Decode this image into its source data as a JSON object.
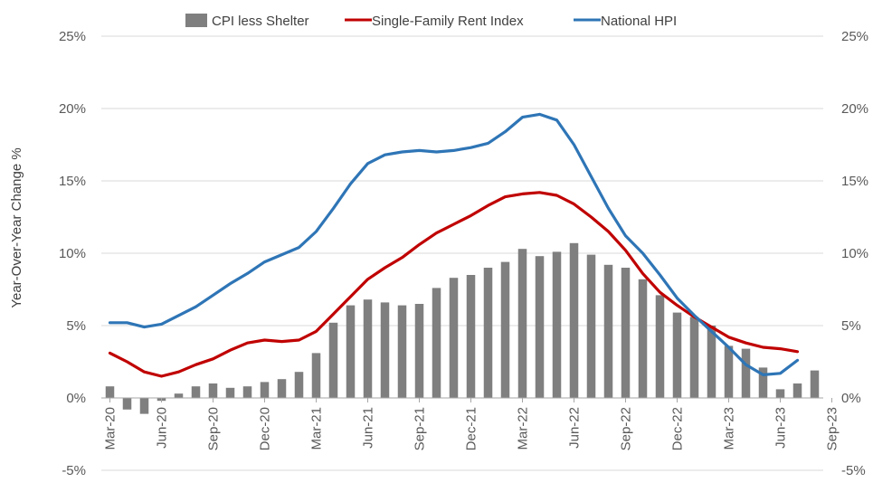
{
  "chart_data": {
    "type": "bar+line",
    "title": "",
    "ylabel": "Year-Over-Year Change %",
    "ylim": [
      -5,
      25
    ],
    "yticks": [
      "-5%",
      "0%",
      "5%",
      "10%",
      "15%",
      "20%",
      "25%"
    ],
    "ytick_values": [
      -5,
      0,
      5,
      10,
      15,
      20,
      25
    ],
    "x_tick_labels": [
      "Mar-20",
      "Jun-20",
      "Sep-20",
      "Dec-20",
      "Mar-21",
      "Jun-21",
      "Sep-21",
      "Dec-21",
      "Mar-22",
      "Jun-22",
      "Sep-22",
      "Dec-22",
      "Mar-23",
      "Jun-23",
      "Sep-23"
    ],
    "grid": "horizontal",
    "legend": "top-center",
    "colors": {
      "cpi": "#7f7f7f",
      "rent": "#c00000",
      "hpi": "#2e75b6",
      "grid": "#d9d9d9",
      "axis": "#a6a6a6"
    },
    "series": [
      {
        "name": "CPI less Shelter",
        "kind": "bar",
        "values": [
          0.8,
          -0.8,
          -1.1,
          -0.2,
          0.3,
          0.8,
          1.0,
          0.7,
          0.8,
          1.1,
          1.3,
          1.8,
          3.1,
          5.2,
          6.4,
          6.8,
          6.6,
          6.4,
          6.5,
          7.6,
          8.3,
          8.5,
          9.0,
          9.4,
          10.3,
          9.8,
          10.1,
          10.7,
          9.9,
          9.2,
          9.0,
          8.2,
          7.1,
          5.9,
          5.6,
          5.0,
          3.6,
          3.4,
          2.1,
          0.6,
          1.0,
          1.9
        ]
      },
      {
        "name": "Single-Family Rent Index",
        "kind": "line",
        "values": [
          3.1,
          2.5,
          1.8,
          1.5,
          1.8,
          2.3,
          2.7,
          3.3,
          3.8,
          4.0,
          3.9,
          4.0,
          4.6,
          5.8,
          7.0,
          8.2,
          9.0,
          9.7,
          10.6,
          11.4,
          12.0,
          12.6,
          13.3,
          13.9,
          14.1,
          14.2,
          14.0,
          13.4,
          12.5,
          11.5,
          10.2,
          8.6,
          7.3,
          6.4,
          5.6,
          4.9,
          4.2,
          3.8,
          3.5,
          3.4,
          3.2,
          null
        ]
      },
      {
        "name": "National HPI",
        "kind": "line",
        "values": [
          5.2,
          5.2,
          4.9,
          5.1,
          5.7,
          6.3,
          7.1,
          7.9,
          8.6,
          9.4,
          9.9,
          10.4,
          11.5,
          13.1,
          14.8,
          16.2,
          16.8,
          17.0,
          17.1,
          17.0,
          17.1,
          17.3,
          17.6,
          18.4,
          19.4,
          19.6,
          19.2,
          17.5,
          15.3,
          13.1,
          11.2,
          10.0,
          8.5,
          6.9,
          5.7,
          4.6,
          3.5,
          2.3,
          1.6,
          1.7,
          2.6,
          null
        ]
      }
    ]
  }
}
